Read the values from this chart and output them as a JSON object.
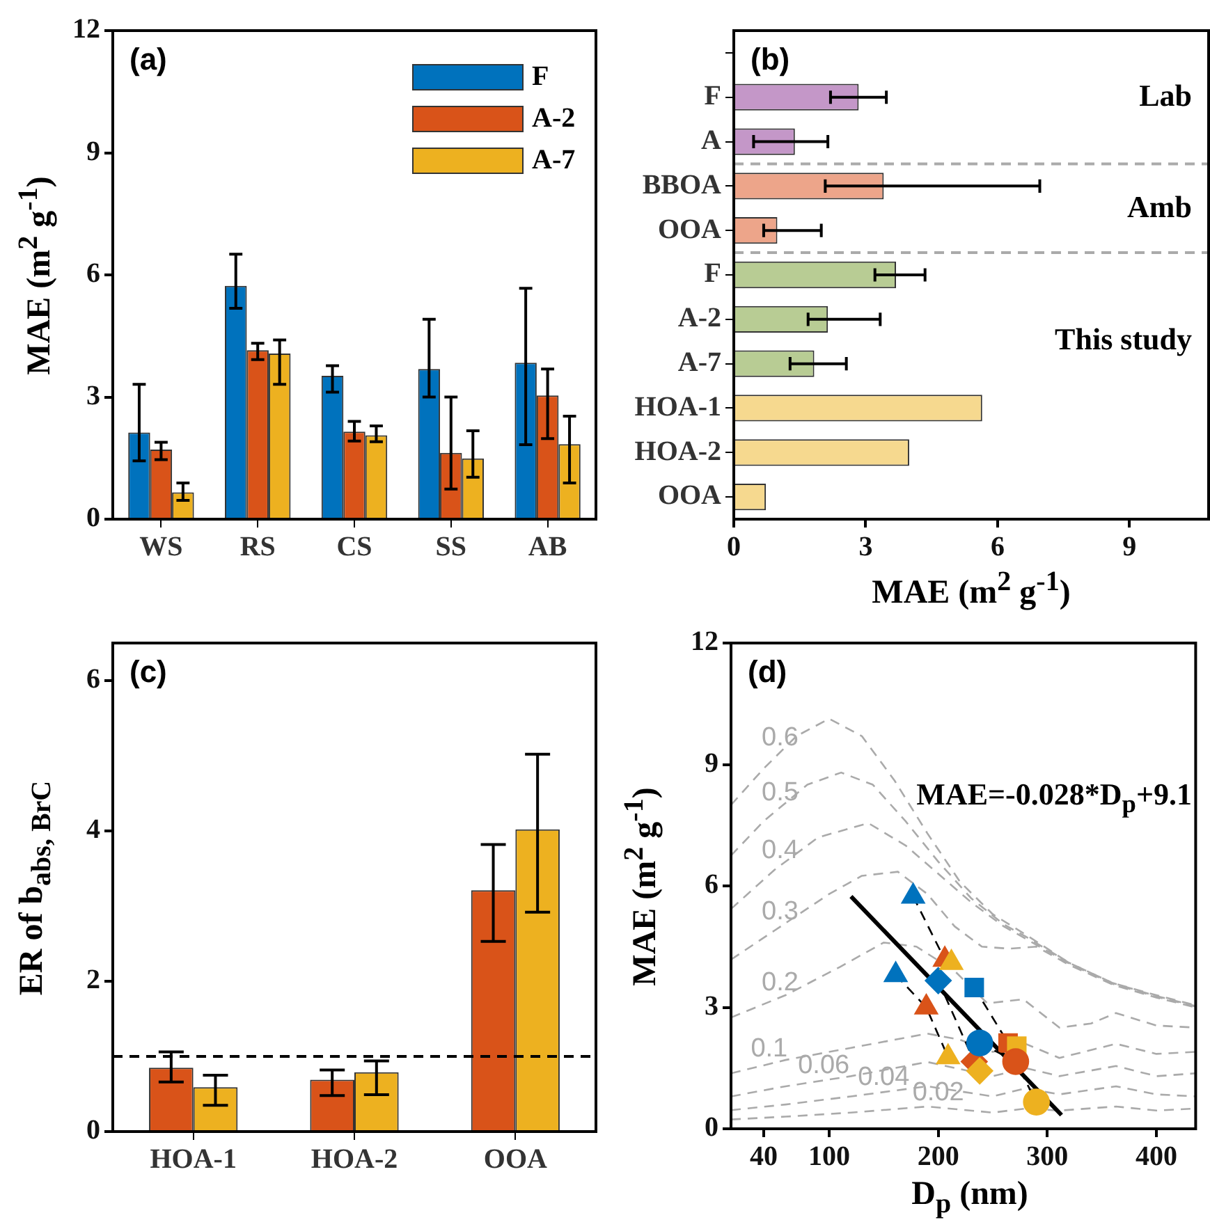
{
  "chart_data": [
    {
      "type": "bar",
      "title": "(a)",
      "ylabel": "MAE (m$^{2}$ g$^{-1}$)",
      "categories": [
        "WS",
        "RS",
        "CS",
        "SS",
        "AB"
      ],
      "legend": "top right",
      "series": [
        {
          "name": "F",
          "color": "#0072bd",
          "values": [
            2.13,
            5.73,
            3.52,
            3.69,
            3.84
          ],
          "errors": [
            [
              1.43,
              3.31
            ],
            [
              5.18,
              6.51
            ],
            [
              3.12,
              3.77
            ],
            [
              3.0,
              4.91
            ],
            [
              1.83,
              5.67
            ]
          ]
        },
        {
          "name": "A-2",
          "color": "#d95319",
          "values": [
            1.71,
            4.15,
            2.15,
            1.63,
            3.04
          ],
          "errors": [
            [
              1.46,
              1.89
            ],
            [
              3.92,
              4.32
            ],
            [
              1.92,
              2.4
            ],
            [
              0.74,
              3.0
            ],
            [
              1.98,
              3.69
            ]
          ]
        },
        {
          "name": "A-7",
          "color": "#edb120",
          "values": [
            0.66,
            4.07,
            2.06,
            1.49,
            1.84
          ],
          "errors": [
            [
              0.46,
              0.89
            ],
            [
              3.31,
              4.4
            ],
            [
              1.9,
              2.29
            ],
            [
              1.03,
              2.17
            ],
            [
              0.89,
              2.53
            ]
          ]
        }
      ],
      "ylim": [
        0,
        12
      ],
      "yticks": [
        0,
        3,
        6,
        9,
        12
      ]
    },
    {
      "type": "bar",
      "orientation": "horizontal",
      "title": "(b)",
      "xlabel": "MAE (m$^{2}$ g$^{-1}$)",
      "categories": [
        null,
        "F",
        "A",
        "BBOA",
        "OOA",
        "F",
        "A-2",
        "A-7",
        "HOA-1",
        "HOA-2",
        "OOA"
      ],
      "values": [
        null,
        2.84,
        1.39,
        3.41,
        0.99,
        3.69,
        2.14,
        1.83,
        5.65,
        3.99,
        0.73
      ],
      "colors": [
        null,
        "#c497c8",
        "#c497c8",
        "#eda58a",
        "#eda58a",
        "#b8cc94",
        "#b8cc94",
        "#b8cc94",
        "#f6d98f",
        "#f6d98f",
        "#f6d98f"
      ],
      "errors": [
        null,
        [
          2.2,
          3.47
        ],
        [
          0.45,
          2.14
        ],
        [
          2.08,
          6.96
        ],
        [
          0.68,
          1.99
        ],
        [
          3.21,
          4.35
        ],
        [
          1.69,
          3.33
        ],
        [
          1.28,
          2.56
        ],
        null,
        null,
        null
      ],
      "xlim": [
        0,
        10.8
      ],
      "xticks": [
        0,
        3,
        6,
        9
      ],
      "annotations": [
        "Lab",
        "Amb",
        "This study"
      ]
    },
    {
      "type": "bar",
      "title": "(c)",
      "ylabel": "ER of b$_{abs, BrC}$",
      "categories": [
        "HOA-1",
        "HOA-2",
        "OOA"
      ],
      "series": [
        {
          "color": "#d95319",
          "values": [
            0.85,
            0.69,
            3.21
          ],
          "errors": [
            [
              0.66,
              1.06
            ],
            [
              0.48,
              0.82
            ],
            [
              2.53,
              3.82
            ]
          ]
        },
        {
          "color": "#edb120",
          "values": [
            0.59,
            0.79,
            4.02
          ],
          "errors": [
            [
              0.35,
              0.75
            ],
            [
              0.49,
              0.94
            ],
            [
              2.92,
              5.02
            ]
          ]
        }
      ],
      "ylim": [
        0,
        6.5
      ],
      "yticks": [
        0,
        2,
        4,
        6
      ],
      "ref_lines": [
        {
          "axis": "y",
          "value": 1,
          "color": "#000000",
          "line_style": "dashed"
        }
      ]
    },
    {
      "type": "scatter",
      "title": "(d)",
      "xlabel": "D$_{p}$ (nm)",
      "ylabel": "MAE (m$^{2}$ g$^{-1}$)",
      "xlim": [
        10,
        436
      ],
      "xticks": [
        40,
        100,
        200,
        300,
        400
      ],
      "ylim": [
        0,
        12
      ],
      "yticks": [
        0,
        3,
        6,
        9,
        12
      ],
      "annotations": [
        "MAE=-0.028*D$_{p}$+9.1"
      ],
      "series": [
        {
          "type": "line",
          "color": "#000000",
          "line_style": "dashed",
          "marker": "circle",
          "colors": [
            "#0072bd",
            "#d95319",
            "#edb120"
          ],
          "x": [
            238,
            271,
            290
          ],
          "values": [
            2.12,
            1.66,
            0.66
          ]
        },
        {
          "type": "line",
          "color": "#000000",
          "line_style": "dashed",
          "marker": "triangle",
          "colors": [
            "#0072bd",
            "#d95319",
            "#edb120"
          ],
          "x": [
            177,
            206,
            212
          ],
          "values": [
            5.74,
            4.18,
            4.1
          ]
        },
        {
          "type": "line",
          "color": "#000000",
          "line_style": "dashed",
          "marker": "square",
          "colors": [
            "#0072bd",
            "#d95319",
            "#edb120"
          ],
          "x": [
            233,
            264,
            272
          ],
          "values": [
            3.49,
            2.12,
            2.04
          ]
        },
        {
          "type": "line",
          "color": "#000000",
          "line_style": "dashed",
          "marker": "diamond",
          "colors": [
            "#0072bd",
            "#d95319",
            "#edb120"
          ],
          "x": [
            200,
            233,
            238
          ],
          "values": [
            3.66,
            1.66,
            1.43
          ]
        },
        {
          "type": "line",
          "color": "#000000",
          "line_style": "dashed",
          "marker": "triangle",
          "colors": [
            "#0072bd",
            "#d95319",
            "#edb120"
          ],
          "x": [
            161,
            189,
            209
          ],
          "values": [
            3.8,
            3.0,
            1.77
          ]
        },
        {
          "type": "line",
          "color": "#000000",
          "line_style": "solid",
          "marker": "none",
          "x": [
            120,
            313
          ],
          "values": [
            5.74,
            0.34
          ]
        },
        {
          "type": "line",
          "name": "0.6",
          "color": "#aaaaaa",
          "line_style": "dashed",
          "marker": "none",
          "x": [
            10,
            40,
            70,
            100,
            130,
            160,
            190,
            220,
            250,
            280,
            320,
            360,
            400,
            436
          ],
          "values": [
            8.0,
            8.9,
            9.7,
            10.13,
            9.7,
            8.6,
            7.3,
            6.1,
            5.3,
            4.8,
            4.1,
            3.6,
            3.3,
            3.05
          ]
        },
        {
          "type": "line",
          "name": "0.5",
          "color": "#aaaaaa",
          "line_style": "dashed",
          "marker": "none",
          "x": [
            10,
            40,
            80,
            111,
            140,
            170,
            200,
            230,
            260,
            280,
            320,
            360,
            400,
            436
          ],
          "values": [
            6.75,
            7.6,
            8.5,
            8.8,
            8.5,
            7.6,
            6.6,
            5.7,
            5.05,
            4.75,
            4.1,
            3.6,
            3.28,
            3.03
          ]
        },
        {
          "type": "line",
          "name": "0.4",
          "color": "#aaaaaa",
          "line_style": "dashed",
          "marker": "none",
          "x": [
            10,
            50,
            90,
            136,
            170,
            200,
            230,
            260,
            280,
            320,
            360,
            400,
            436
          ],
          "values": [
            5.43,
            6.4,
            7.2,
            7.55,
            7.0,
            6.3,
            5.6,
            5.0,
            4.7,
            4.08,
            3.58,
            3.26,
            3.02
          ]
        },
        {
          "type": "line",
          "name": "0.3",
          "color": "#aaaaaa",
          "line_style": "dashed",
          "marker": "none",
          "x": [
            10,
            50,
            100,
            130,
            163,
            190,
            215,
            240,
            265,
            290,
            320,
            360,
            400,
            436
          ],
          "values": [
            4.18,
            4.9,
            5.8,
            6.25,
            6.35,
            5.8,
            5.0,
            4.5,
            4.45,
            4.5,
            4.05,
            3.56,
            3.24,
            3.0
          ]
        },
        {
          "type": "line",
          "name": "0.2",
          "color": "#aaaaaa",
          "line_style": "dashed",
          "marker": "none",
          "x": [
            10,
            60,
            110,
            150,
            180,
            215,
            245,
            278,
            311,
            340,
            363,
            400,
            436
          ],
          "values": [
            2.75,
            3.3,
            4.0,
            4.6,
            4.5,
            3.9,
            3.1,
            3.2,
            2.5,
            2.6,
            2.86,
            2.55,
            2.5
          ]
        },
        {
          "type": "line",
          "name": "0.1",
          "color": "#aaaaaa",
          "line_style": "dashed",
          "marker": "none",
          "x": [
            10,
            60,
            120,
            160,
            190,
            220,
            250,
            280,
            311,
            363,
            400,
            436
          ],
          "values": [
            1.37,
            1.7,
            2.0,
            2.2,
            2.35,
            2.2,
            1.9,
            2.1,
            1.75,
            2.1,
            1.85,
            1.9
          ]
        },
        {
          "type": "line",
          "name": "0.06",
          "color": "#aaaaaa",
          "line_style": "dashed",
          "marker": "none",
          "x": [
            10,
            60,
            120,
            190,
            250,
            280,
            311,
            363,
            400,
            436
          ],
          "values": [
            0.8,
            1.05,
            1.3,
            1.65,
            1.3,
            1.5,
            1.3,
            1.55,
            1.3,
            1.37
          ]
        },
        {
          "type": "line",
          "name": "0.04",
          "color": "#aaaaaa",
          "line_style": "dashed",
          "marker": "none",
          "x": [
            10,
            60,
            120,
            190,
            250,
            280,
            311,
            363,
            400,
            436
          ],
          "values": [
            0.46,
            0.6,
            0.8,
            1.05,
            0.8,
            1.0,
            0.85,
            1.05,
            0.85,
            0.8
          ]
        },
        {
          "type": "line",
          "name": "0.02",
          "color": "#aaaaaa",
          "line_style": "dashed",
          "marker": "none",
          "x": [
            10,
            60,
            120,
            190,
            250,
            280,
            311,
            363,
            400,
            436
          ],
          "values": [
            0.23,
            0.3,
            0.4,
            0.55,
            0.4,
            0.5,
            0.45,
            0.55,
            0.45,
            0.5
          ]
        }
      ]
    }
  ]
}
